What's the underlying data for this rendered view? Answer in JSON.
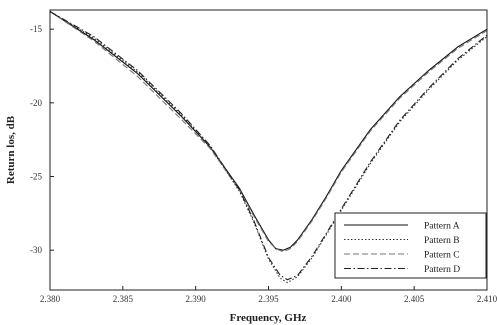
{
  "chart_data": {
    "type": "line",
    "title": "",
    "xlabel": "Frequency, GHz",
    "ylabel": "Return los, dB",
    "xlim": [
      2.38,
      2.41
    ],
    "ylim": [
      -32.7,
      -13.7
    ],
    "x_ticks": [
      "2.380",
      "2.385",
      "2.390",
      "2.395",
      "2.400",
      "2.405",
      "2.410"
    ],
    "y_ticks": [
      "-15",
      "-20",
      "-25",
      "-30"
    ],
    "x_tick_values": [
      2.38,
      2.385,
      2.39,
      2.395,
      2.4,
      2.405,
      2.41
    ],
    "y_tick_values": [
      -15,
      -20,
      -25,
      -30
    ],
    "grid": false,
    "legend_position": "bottom-right",
    "series": [
      {
        "name": "Pattern A",
        "style": "solid",
        "color": "#111111",
        "x": [
          2.38,
          2.383,
          2.386,
          2.389,
          2.391,
          2.393,
          2.394,
          2.395,
          2.3955,
          2.396,
          2.3965,
          2.397,
          2.398,
          2.399,
          2.4,
          2.402,
          2.404,
          2.406,
          2.408,
          2.41
        ],
        "y": [
          -13.8,
          -15.7,
          -18.0,
          -20.9,
          -23.0,
          -25.8,
          -27.6,
          -29.3,
          -29.9,
          -30.0,
          -29.8,
          -29.3,
          -27.9,
          -26.3,
          -24.6,
          -21.8,
          -19.6,
          -17.8,
          -16.2,
          -15.0
        ]
      },
      {
        "name": "Pattern B",
        "style": "dotted",
        "color": "#333333",
        "x": [
          2.38,
          2.383,
          2.386,
          2.389,
          2.391,
          2.393,
          2.394,
          2.395,
          2.3958,
          2.3963,
          2.397,
          2.398,
          2.399,
          2.4,
          2.402,
          2.404,
          2.406,
          2.408,
          2.41
        ],
        "y": [
          -13.8,
          -15.6,
          -17.9,
          -20.8,
          -23.0,
          -26.0,
          -28.1,
          -30.6,
          -31.9,
          -32.2,
          -31.8,
          -30.5,
          -28.9,
          -27.3,
          -24.1,
          -21.3,
          -19.1,
          -17.1,
          -15.5
        ]
      },
      {
        "name": "Pattern C",
        "style": "dashed",
        "color": "#777777",
        "x": [
          2.38,
          2.383,
          2.386,
          2.389,
          2.391,
          2.393,
          2.394,
          2.395,
          2.3955,
          2.396,
          2.3965,
          2.397,
          2.398,
          2.399,
          2.4,
          2.402,
          2.404,
          2.406,
          2.408,
          2.41
        ],
        "y": [
          -13.8,
          -15.8,
          -18.2,
          -21.1,
          -23.1,
          -25.9,
          -27.7,
          -29.4,
          -29.9,
          -30.1,
          -29.9,
          -29.4,
          -28.0,
          -26.4,
          -24.7,
          -21.9,
          -19.7,
          -17.9,
          -16.3,
          -15.1
        ]
      },
      {
        "name": "Pattern D",
        "style": "dash-dot",
        "color": "#222222",
        "x": [
          2.38,
          2.383,
          2.386,
          2.389,
          2.391,
          2.393,
          2.394,
          2.395,
          2.3958,
          2.3963,
          2.397,
          2.398,
          2.399,
          2.4,
          2.402,
          2.404,
          2.406,
          2.408,
          2.41
        ],
        "y": [
          -13.8,
          -15.5,
          -17.8,
          -20.7,
          -22.9,
          -25.9,
          -28.0,
          -30.5,
          -31.7,
          -32.0,
          -31.7,
          -30.4,
          -28.8,
          -27.2,
          -24.0,
          -21.2,
          -19.0,
          -17.0,
          -15.4
        ]
      }
    ]
  }
}
